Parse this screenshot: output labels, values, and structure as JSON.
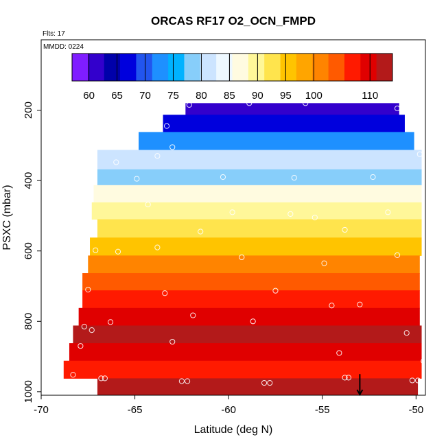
{
  "chart_data": {
    "type": "heatmap",
    "title": "ORCAS RF17 O2_OCN_FMPD",
    "annotations": [
      "Flts: 17",
      "MMDD: 0224"
    ],
    "xlabel": "Latitude (deg N)",
    "ylabel": "PSXC (mbar)",
    "xlim": [
      -70,
      -49.5
    ],
    "ylim": [
      1010,
      0
    ],
    "x_ticks": [
      -70,
      -65,
      -60,
      -55,
      -50
    ],
    "y_ticks": [
      200,
      400,
      600,
      800,
      1000
    ],
    "colorbar": {
      "ticks": [
        60,
        65,
        70,
        75,
        80,
        85,
        90,
        95,
        100,
        110
      ],
      "range": [
        57,
        114
      ],
      "colors": [
        "#7f1dff",
        "#3300cc",
        "#0000aa",
        "#0000dd",
        "#2255ee",
        "#1e90ff",
        "#00b2ff",
        "#87cefa",
        "#cce4ff",
        "#eef8ff",
        "#fffbe0",
        "#fff799",
        "#ffe44d",
        "#ffc400",
        "#ffa500",
        "#ff8400",
        "#ff5a00",
        "#ff1a00",
        "#e00000",
        "#b31a1a"
      ]
    },
    "rows": [
      {
        "p_top": 180,
        "p_bot": 213,
        "lat_min": -62.3,
        "lat_max": -50.9,
        "value": 60
      },
      {
        "p_top": 213,
        "p_bot": 262,
        "lat_min": -63.5,
        "lat_max": -50.6,
        "value": 66
      },
      {
        "p_top": 262,
        "p_bot": 313,
        "lat_min": -64.8,
        "lat_max": -50.1,
        "value": 74
      },
      {
        "p_top": 313,
        "p_bot": 368,
        "lat_min": -67.0,
        "lat_max": -49.7,
        "value": 82
      },
      {
        "p_top": 368,
        "p_bot": 413,
        "lat_min": -67.0,
        "lat_max": -49.7,
        "value": 77
      },
      {
        "p_top": 413,
        "p_bot": 462,
        "lat_min": -67.2,
        "lat_max": -49.7,
        "value": 86
      },
      {
        "p_top": 462,
        "p_bot": 510,
        "lat_min": -67.3,
        "lat_max": -49.7,
        "value": 89
      },
      {
        "p_top": 510,
        "p_bot": 562,
        "lat_min": -67.0,
        "lat_max": -49.7,
        "value": 93
      },
      {
        "p_top": 562,
        "p_bot": 613,
        "lat_min": -67.4,
        "lat_max": -49.7,
        "value": 96
      },
      {
        "p_top": 613,
        "p_bot": 663,
        "lat_min": -67.5,
        "lat_max": -49.8,
        "value": 100
      },
      {
        "p_top": 663,
        "p_bot": 712,
        "lat_min": -67.8,
        "lat_max": -49.8,
        "value": 103
      },
      {
        "p_top": 712,
        "p_bot": 762,
        "lat_min": -67.8,
        "lat_max": -49.8,
        "value": 107
      },
      {
        "p_top": 762,
        "p_bot": 812,
        "lat_min": -68.0,
        "lat_max": -49.8,
        "value": 109
      },
      {
        "p_top": 812,
        "p_bot": 862,
        "lat_min": -68.3,
        "lat_max": -49.7,
        "value": 112
      },
      {
        "p_top": 862,
        "p_bot": 912,
        "lat_min": -68.5,
        "lat_max": -49.7,
        "value": 109
      },
      {
        "p_top": 912,
        "p_bot": 962,
        "lat_min": -68.8,
        "lat_max": -49.7,
        "value": 108
      },
      {
        "p_top": 962,
        "p_bot": 1010,
        "lat_min": -67.0,
        "lat_max": -49.9,
        "value": 112
      }
    ],
    "points": [
      {
        "lat": -62.1,
        "p": 185
      },
      {
        "lat": -58.9,
        "p": 180
      },
      {
        "lat": -55.9,
        "p": 180
      },
      {
        "lat": -51.0,
        "p": 195
      },
      {
        "lat": -63.3,
        "p": 245
      },
      {
        "lat": -63.0,
        "p": 305
      },
      {
        "lat": -66.0,
        "p": 348
      },
      {
        "lat": -63.8,
        "p": 330
      },
      {
        "lat": -49.8,
        "p": 325
      },
      {
        "lat": -60.3,
        "p": 390
      },
      {
        "lat": -56.5,
        "p": 392
      },
      {
        "lat": -52.3,
        "p": 390
      },
      {
        "lat": -64.9,
        "p": 395
      },
      {
        "lat": -64.3,
        "p": 468
      },
      {
        "lat": -59.8,
        "p": 490
      },
      {
        "lat": -56.7,
        "p": 495
      },
      {
        "lat": -51.5,
        "p": 490
      },
      {
        "lat": -55.4,
        "p": 505
      },
      {
        "lat": -53.8,
        "p": 540
      },
      {
        "lat": -61.5,
        "p": 545
      },
      {
        "lat": -67.1,
        "p": 598
      },
      {
        "lat": -65.9,
        "p": 602
      },
      {
        "lat": -63.8,
        "p": 590
      },
      {
        "lat": -59.3,
        "p": 618
      },
      {
        "lat": -54.9,
        "p": 635
      },
      {
        "lat": -51.0,
        "p": 612
      },
      {
        "lat": -67.5,
        "p": 710
      },
      {
        "lat": -63.4,
        "p": 720
      },
      {
        "lat": -57.5,
        "p": 713
      },
      {
        "lat": -54.5,
        "p": 755
      },
      {
        "lat": -53.0,
        "p": 752
      },
      {
        "lat": -61.9,
        "p": 783
      },
      {
        "lat": -66.3,
        "p": 802
      },
      {
        "lat": -58.7,
        "p": 800
      },
      {
        "lat": -67.7,
        "p": 815
      },
      {
        "lat": -67.3,
        "p": 825
      },
      {
        "lat": -50.5,
        "p": 833
      },
      {
        "lat": -67.9,
        "p": 870
      },
      {
        "lat": -63.0,
        "p": 858
      },
      {
        "lat": -54.1,
        "p": 890
      },
      {
        "lat": -49.6,
        "p": 913
      },
      {
        "lat": -68.3,
        "p": 952
      },
      {
        "lat": -66.8,
        "p": 962
      },
      {
        "lat": -66.6,
        "p": 962
      },
      {
        "lat": -62.5,
        "p": 970
      },
      {
        "lat": -62.2,
        "p": 970
      },
      {
        "lat": -58.1,
        "p": 975
      },
      {
        "lat": -57.8,
        "p": 975
      },
      {
        "lat": -53.8,
        "p": 960
      },
      {
        "lat": -53.6,
        "p": 960
      },
      {
        "lat": -50.2,
        "p": 968
      },
      {
        "lat": -49.9,
        "p": 968
      }
    ],
    "marker": {
      "type": "arrow",
      "lat": -53.0,
      "p_from": 950,
      "p_to": 1008
    }
  }
}
